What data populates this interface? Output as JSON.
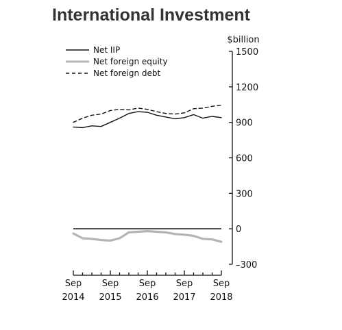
{
  "chart_data": {
    "type": "line",
    "title": "International Investment",
    "ylabel": "$billion",
    "xlabel": "",
    "ylim": [
      -300,
      1500
    ],
    "y_ticks": [
      -300,
      0,
      300,
      600,
      900,
      1200,
      1500
    ],
    "y_tick_labels": [
      "–300",
      "0",
      "300",
      "600",
      "900",
      "1200",
      "1500"
    ],
    "x_tick_labels": [
      {
        "month": "Sep",
        "year": "2014"
      },
      {
        "month": "Sep",
        "year": "2015"
      },
      {
        "month": "Sep",
        "year": "2016"
      },
      {
        "month": "Sep",
        "year": "2017"
      },
      {
        "month": "Sep",
        "year": "2018"
      }
    ],
    "legend_position": "top-left",
    "grid": false,
    "x": [
      "Sep 2014",
      "Dec 2014",
      "Mar 2015",
      "Jun 2015",
      "Sep 2015",
      "Dec 2015",
      "Mar 2016",
      "Jun 2016",
      "Sep 2016",
      "Dec 2016",
      "Mar 2017",
      "Jun 2017",
      "Sep 2017",
      "Dec 2017",
      "Mar 2018",
      "Jun 2018",
      "Sep 2018"
    ],
    "series": [
      {
        "name": "Net IIP",
        "style": "solid",
        "color": "#111111",
        "values": [
          860,
          855,
          870,
          865,
          900,
          935,
          975,
          990,
          985,
          960,
          945,
          930,
          940,
          965,
          935,
          950,
          940
        ]
      },
      {
        "name": "Net foreign equity",
        "style": "solid",
        "color": "#b4b4b4",
        "values": [
          -40,
          -80,
          -85,
          -95,
          -100,
          -80,
          -30,
          -25,
          -20,
          -25,
          -30,
          -45,
          -50,
          -60,
          -85,
          -90,
          -110
        ]
      },
      {
        "name": "Net foreign debt",
        "style": "dashed",
        "color": "#111111",
        "values": [
          900,
          935,
          960,
          970,
          1000,
          1010,
          1005,
          1020,
          1010,
          990,
          975,
          970,
          980,
          1015,
          1020,
          1035,
          1045
        ]
      }
    ]
  }
}
